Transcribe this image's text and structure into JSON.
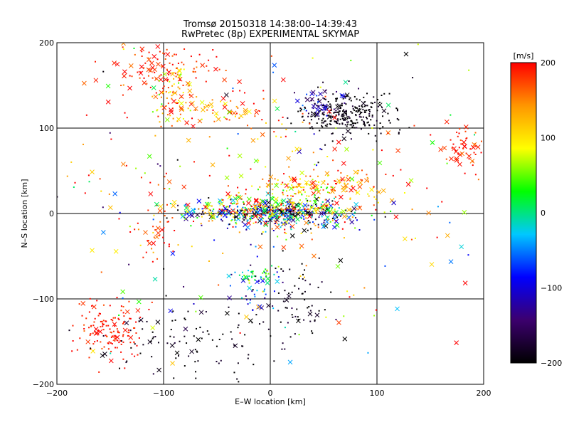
{
  "chart_data": {
    "type": "scatter",
    "title": "Tromsø 20150318 14:38:00–14:39:43",
    "subtitle": "RwPretec (8p) EXPERIMENTAL SKYMAP",
    "xlabel": "E–W location [km]",
    "ylabel": "N–S location [km]",
    "xlim": [
      -200,
      200
    ],
    "ylim": [
      -200,
      200
    ],
    "xticks": [
      -200,
      -100,
      0,
      100,
      200
    ],
    "yticks": [
      -200,
      -100,
      0,
      100,
      200
    ],
    "xtick_labels": [
      "−200",
      "−100",
      "0",
      "100",
      "200"
    ],
    "ytick_labels": [
      "−200",
      "−100",
      "0",
      "100",
      "200"
    ],
    "grid": true,
    "marker_types": [
      "dot",
      "x"
    ],
    "colorbar": {
      "unit": "[m/s]",
      "range": [
        -200,
        200
      ],
      "ticks": [
        200,
        100,
        0,
        -100,
        -200
      ],
      "tick_labels": [
        "200",
        "100",
        "0",
        "−100",
        "−200"
      ],
      "colormap": [
        "#000000",
        "#3c006e",
        "#0000ff",
        "#00c8ff",
        "#00ff00",
        "#ffff00",
        "#ff9600",
        "#ff0000"
      ]
    },
    "clusters": [
      {
        "x": 0,
        "y": 3,
        "sx": 42,
        "sy": 7,
        "n": 550,
        "v": 0,
        "vs": 140,
        "xfrac": 0.25
      },
      {
        "x": 20,
        "y": -8,
        "sx": 35,
        "sy": 10,
        "n": 120,
        "v": -40,
        "vs": 120,
        "xfrac": 0.2
      },
      {
        "x": 70,
        "y": 115,
        "sx": 22,
        "sy": 13,
        "n": 280,
        "v": -195,
        "vs": 15,
        "xfrac": 0.06
      },
      {
        "x": 45,
        "y": 130,
        "sx": 14,
        "sy": 10,
        "n": 40,
        "v": -120,
        "vs": 40,
        "xfrac": 0.5
      },
      {
        "x": -100,
        "y": 165,
        "sx": 30,
        "sy": 20,
        "n": 130,
        "v": 185,
        "vs": 25,
        "xfrac": 0.35
      },
      {
        "x": -90,
        "y": 135,
        "sx": 12,
        "sy": 18,
        "n": 60,
        "v": 110,
        "vs": 40,
        "xfrac": 0.3
      },
      {
        "x": -40,
        "y": 120,
        "sx": 25,
        "sy": 10,
        "n": 60,
        "v": 160,
        "vs": 45,
        "xfrac": 0.4
      },
      {
        "x": 180,
        "y": 75,
        "sx": 12,
        "sy": 12,
        "n": 55,
        "v": 190,
        "vs": 15,
        "xfrac": 0.3
      },
      {
        "x": -150,
        "y": -135,
        "sx": 16,
        "sy": 17,
        "n": 140,
        "v": 190,
        "vs": 12,
        "xfrac": 0.12
      },
      {
        "x": -70,
        "y": -150,
        "sx": 45,
        "sy": 25,
        "n": 110,
        "v": -195,
        "vs": 15,
        "xfrac": 0.1
      },
      {
        "x": 25,
        "y": -100,
        "sx": 15,
        "sy": 25,
        "n": 60,
        "v": -195,
        "vs": 15,
        "xfrac": 0.1
      },
      {
        "x": -10,
        "y": -90,
        "sx": 12,
        "sy": 18,
        "n": 50,
        "v": -80,
        "vs": 60,
        "xfrac": 0.2
      },
      {
        "x": -15,
        "y": -70,
        "sx": 10,
        "sy": 5,
        "n": 35,
        "v": 20,
        "vs": 30,
        "xfrac": 0.1
      },
      {
        "x": 55,
        "y": 35,
        "sx": 30,
        "sy": 8,
        "n": 110,
        "v": 150,
        "vs": 50,
        "xfrac": 0.3
      },
      {
        "x": 30,
        "y": 30,
        "sx": 18,
        "sy": 6,
        "n": 40,
        "v": 80,
        "vs": 40,
        "xfrac": 0.2
      },
      {
        "x": 0,
        "y": 40,
        "sx": 90,
        "sy": 60,
        "n": 200,
        "v": 150,
        "vs": 70,
        "xfrac": 0.3
      },
      {
        "x": -110,
        "y": -20,
        "sx": 15,
        "sy": 20,
        "n": 35,
        "v": 180,
        "vs": 30,
        "xfrac": 0.2
      },
      {
        "x": 0,
        "y": 0,
        "sx": 150,
        "sy": 150,
        "n": 150,
        "v": 0,
        "vs": 140,
        "xfrac": 0.3
      }
    ]
  }
}
